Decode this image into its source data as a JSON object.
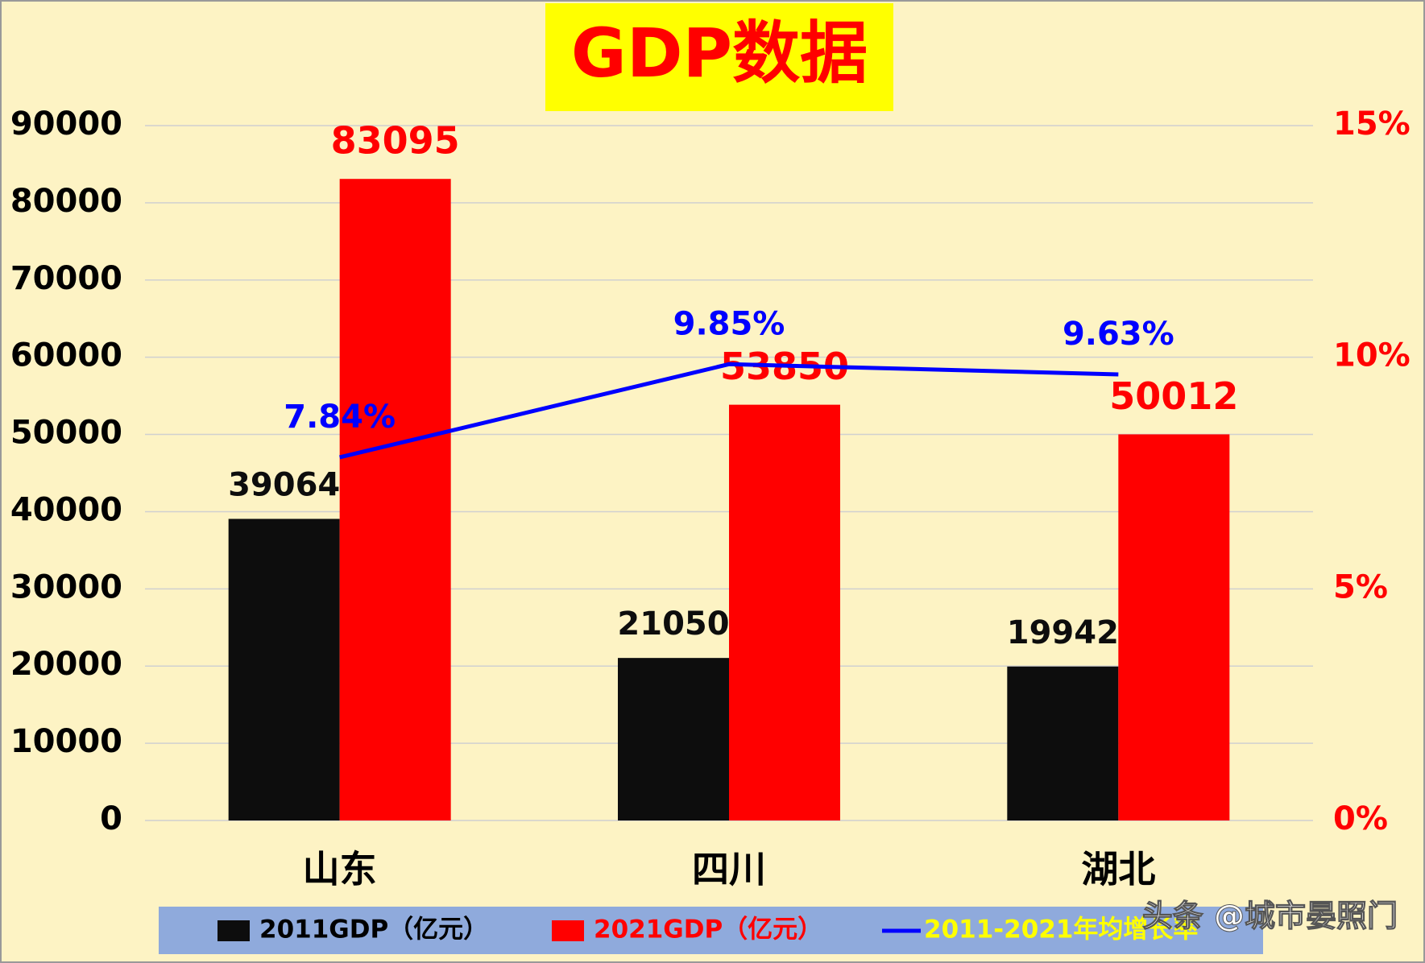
{
  "chart_data": {
    "type": "bar",
    "title": "GDP数据",
    "categories": [
      "山东",
      "四川",
      "湖北"
    ],
    "series": [
      {
        "name": "2011GDP（亿元）",
        "type": "bar",
        "color": "#0d0d0d",
        "values": [
          39064,
          21050,
          19942
        ]
      },
      {
        "name": "2021GDP（亿元）",
        "type": "bar",
        "color": "#ff0000",
        "values": [
          83095,
          53850,
          50012
        ]
      },
      {
        "name": "2011-2021年均增长率",
        "type": "line",
        "axis": "y2",
        "color": "#0000ff",
        "values": [
          7.84,
          9.85,
          9.63
        ],
        "value_labels": [
          "7.84%",
          "9.85%",
          "9.63%"
        ]
      }
    ],
    "ylim": [
      0,
      90000
    ],
    "yticks": [
      0,
      10000,
      20000,
      30000,
      40000,
      50000,
      60000,
      70000,
      80000,
      90000
    ],
    "y2lim": [
      0,
      15
    ],
    "y2ticks": [
      {
        "value": 0,
        "label": "0%"
      },
      {
        "value": 5,
        "label": "5%"
      },
      {
        "value": 10,
        "label": "10%"
      },
      {
        "value": 15,
        "label": "15%"
      }
    ],
    "grid": true,
    "legend": "bottom",
    "watermark": "头条 @城市晏照门"
  }
}
